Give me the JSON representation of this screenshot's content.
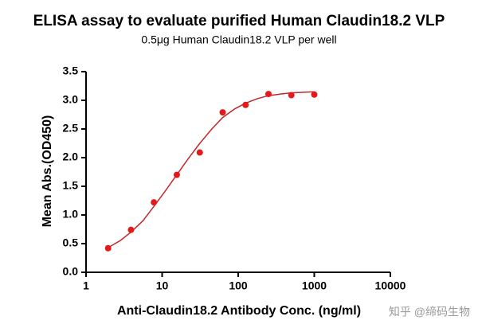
{
  "chart_data": {
    "type": "scatter",
    "title": "ELISA assay to evaluate purified Human Claudin18.2 VLP",
    "subtitle": "0.5μg Human Claudin18.2 VLP per well",
    "x_label": "Anti-Claudin18.2 Antibody Conc. (ng/ml)",
    "y_label": "Mean Abs.(OD450)",
    "log_x": true,
    "xlim": [
      1,
      10000
    ],
    "xticks": [
      1,
      10,
      100,
      1000,
      10000
    ],
    "ylim": [
      0,
      3.5
    ],
    "yticks": [
      {
        "value": 0,
        "label": "0.0"
      },
      {
        "value": 0.5,
        "label": "0.5"
      },
      {
        "value": 1,
        "label": "1.0"
      },
      {
        "value": 1.5,
        "label": "1.5"
      },
      {
        "value": 2,
        "label": "2.0"
      },
      {
        "value": 2.5,
        "label": "2.5"
      },
      {
        "value": 3,
        "label": "3.0"
      },
      {
        "value": 3.5,
        "label": "3.5"
      }
    ],
    "color": "#e31a1c",
    "x": [
      1.95,
      3.9,
      7.8,
      15.6,
      31.25,
      62.5,
      125,
      250,
      500,
      1000
    ],
    "values": [
      0.42,
      0.74,
      1.22,
      1.7,
      2.09,
      2.79,
      2.92,
      3.11,
      3.09,
      3.1
    ],
    "fit_curve": {
      "x": [
        1.95,
        2.8,
        3.9,
        5.6,
        7.8,
        11,
        15.6,
        22,
        31.25,
        45,
        62.5,
        90,
        125,
        180,
        250,
        360,
        500,
        720,
        1000
      ],
      "values": [
        0.43,
        0.55,
        0.7,
        0.9,
        1.15,
        1.42,
        1.7,
        1.98,
        2.25,
        2.5,
        2.7,
        2.85,
        2.95,
        3.03,
        3.08,
        3.11,
        3.13,
        3.14,
        3.15
      ]
    },
    "watermark": "知乎 @缔码生物"
  }
}
